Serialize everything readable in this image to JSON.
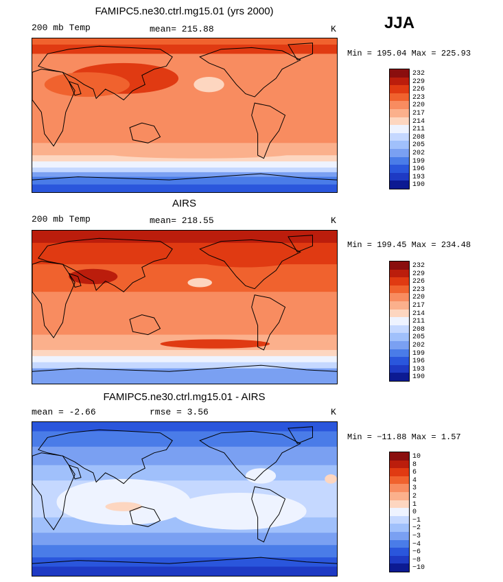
{
  "season": "JJA",
  "panels": [
    {
      "title": "FAMIPC5.ne30.ctrl.mg15.01 (yrs 2000)",
      "left_label": "200 mb Temp",
      "stat_label": "mean= 215.88",
      "stat2_label": "",
      "unit": "K",
      "minmax": "Min = 195.04 Max = 225.93",
      "colorbar_labels": [
        "232",
        "229",
        "226",
        "223",
        "220",
        "217",
        "214",
        "211",
        "208",
        "205",
        "202",
        "199",
        "196",
        "193",
        "190"
      ],
      "colorbar_colors": [
        "#8a0e0e",
        "#bb1d0c",
        "#e03a12",
        "#f0622e",
        "#f88c60",
        "#fbb08c",
        "#fdd6c0",
        "#eef3ff",
        "#c5d8ff",
        "#a0c0fb",
        "#7aa0f2",
        "#4a7ce8",
        "#2a56dc",
        "#1e3ac4",
        "#0c1a92"
      ],
      "field": "model"
    },
    {
      "title": "AIRS",
      "left_label": "200 mb Temp",
      "stat_label": "mean= 218.55",
      "stat2_label": "",
      "unit": "K",
      "minmax": "Min = 199.45 Max = 234.48",
      "colorbar_labels": [
        "232",
        "229",
        "226",
        "223",
        "220",
        "217",
        "214",
        "211",
        "208",
        "205",
        "202",
        "199",
        "196",
        "193",
        "190"
      ],
      "colorbar_colors": [
        "#8a0e0e",
        "#bb1d0c",
        "#e03a12",
        "#f0622e",
        "#f88c60",
        "#fbb08c",
        "#fdd6c0",
        "#eef3ff",
        "#c5d8ff",
        "#a0c0fb",
        "#7aa0f2",
        "#4a7ce8",
        "#2a56dc",
        "#1e3ac4",
        "#0c1a92"
      ],
      "field": "obs"
    },
    {
      "title": "FAMIPC5.ne30.ctrl.mg15.01 - AIRS",
      "left_label": "mean =   -2.66",
      "stat_label": "rmse =    3.56",
      "stat2_label": "",
      "unit": "K",
      "minmax": "Min = −11.88 Max =   1.57",
      "colorbar_labels": [
        "10",
        "8",
        "6",
        "4",
        "3",
        "2",
        "1",
        "0",
        "−1",
        "−2",
        "−3",
        "−4",
        "−6",
        "−8",
        "−10"
      ],
      "colorbar_colors": [
        "#8a0e0e",
        "#bb1d0c",
        "#e03a12",
        "#f0622e",
        "#f88c60",
        "#fbb08c",
        "#fdd6c0",
        "#eef3ff",
        "#c5d8ff",
        "#a0c0fb",
        "#7aa0f2",
        "#4a7ce8",
        "#2a56dc",
        "#1e3ac4",
        "#0c1a92"
      ],
      "field": "diff"
    }
  ]
}
